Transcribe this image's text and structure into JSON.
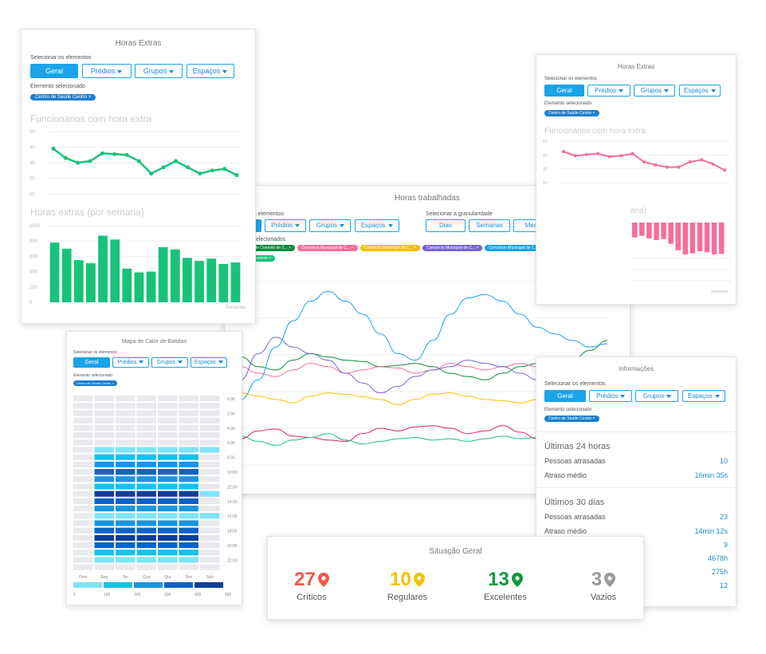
{
  "colors": {
    "accent": "#1aa3e8",
    "green": "#19c27a",
    "pink": "#f36f9a",
    "red": "#ef5a4a",
    "yellow": "#f5c000",
    "darkgreen": "#0b9a3c",
    "gray": "#9a9a9a"
  },
  "filters": {
    "select_label": "Selecionar os elementos",
    "geral": "Geral",
    "predios": "Prédios",
    "grupos": "Grupos",
    "espacos": "Espaços",
    "selected_label": "Elemento selecionado",
    "chip": "Centro de Saúde Centro"
  },
  "card_extras": {
    "title": "Horas Extras",
    "employees_title": "Funcionários com hora extra",
    "hours_title": "Horas extras (por semana)",
    "y1_ticks": [
      "50",
      "40",
      "30",
      "20",
      "10"
    ],
    "y2_ticks": [
      "1000",
      "800",
      "600",
      "400",
      "200",
      "0"
    ],
    "x_label": "Semanas"
  },
  "chart_data": [
    {
      "type": "line",
      "chart": "employees-overtime",
      "ylim": [
        10,
        50
      ],
      "values": [
        39,
        33,
        30,
        31,
        36,
        35.5,
        35,
        31,
        23,
        27,
        31,
        27,
        23,
        25,
        26,
        22
      ]
    },
    {
      "type": "bar",
      "chart": "overtime-hours",
      "ylim": [
        0,
        1000
      ],
      "values": [
        780,
        700,
        550,
        510,
        870,
        820,
        440,
        390,
        400,
        720,
        690,
        580,
        540,
        570,
        500,
        520
      ]
    },
    {
      "type": "line",
      "chart": "employees-overtime-pink",
      "ylim": [
        10,
        50
      ],
      "values": [
        40,
        36,
        37,
        38,
        35,
        36,
        38,
        30,
        27,
        25,
        25,
        30,
        32,
        28,
        22
      ]
    },
    {
      "type": "bar",
      "chart": "overtime-hours-pink",
      "values": [
        280,
        250,
        300,
        330,
        310,
        400,
        520,
        600,
        580,
        540,
        560,
        600,
        590
      ]
    },
    {
      "type": "line",
      "chart": "worked-hours",
      "series": [
        {
          "name": "Centro de Saúde Centro",
          "color": "#e0245e",
          "values": [
            40,
            52,
            55,
            44,
            42,
            38,
            36,
            48,
            56,
            52,
            58,
            60,
            56,
            48,
            52,
            60,
            50,
            40,
            38,
            35,
            36,
            40
          ]
        },
        {
          "name": "Secretaria de Turismo",
          "color": "#19c27a",
          "values": [
            44,
            36,
            30,
            38,
            42,
            48,
            38,
            32,
            36,
            40,
            42,
            38,
            40,
            36,
            40,
            44,
            40,
            42,
            46,
            48,
            46,
            50
          ]
        },
        {
          "name": "Centro de Controle de Z...",
          "color": "#0b8a3c",
          "values": [
            165,
            150,
            145,
            160,
            170,
            165,
            160,
            158,
            150,
            152,
            155,
            150,
            140,
            135,
            130,
            140,
            150,
            155,
            158,
            160,
            175,
            190
          ]
        },
        {
          "name": "Consórcio Municipal de C...",
          "color": "#f36f9a",
          "values": [
            150,
            140,
            135,
            145,
            155,
            150,
            140,
            145,
            150,
            148,
            140,
            145,
            155,
            150,
            145,
            150,
            155,
            150,
            140,
            145,
            150,
            148
          ]
        },
        {
          "name": "Consórcio Municipal de C...",
          "color": "#f5c000",
          "values": [
            110,
            105,
            100,
            95,
            105,
            110,
            108,
            104,
            100,
            92,
            100,
            108,
            110,
            105,
            100,
            98,
            95,
            100,
            102,
            104,
            100,
            105
          ]
        },
        {
          "name": "Consórcio Municipal de C...",
          "color": "#7b63d6",
          "values": [
            130,
            170,
            195,
            180,
            170,
            160,
            140,
            125,
            110,
            120,
            135,
            145,
            150,
            160,
            155,
            150,
            140,
            130,
            125,
            135,
            140,
            150
          ]
        },
        {
          "name": "Consórcio Municipal de C...",
          "color": "#1aa3e8",
          "values": [
            100,
            130,
            180,
            220,
            250,
            265,
            250,
            230,
            200,
            170,
            160,
            190,
            230,
            255,
            260,
            250,
            230,
            210,
            200,
            190,
            180,
            185
          ]
        }
      ]
    },
    {
      "type": "heatmap",
      "chart": "clock-in-heatmap",
      "columns": [
        "Dom",
        "Seg",
        "Ter",
        "Qua",
        "Qui",
        "Sex",
        "Sab"
      ],
      "row_labels": [
        "0:00",
        "2:00",
        "4:00",
        "6:00",
        "8:00",
        "10:00",
        "12:00",
        "14:00",
        "16:00",
        "18:00",
        "20:00",
        "22:00"
      ],
      "legend_ticks": [
        "1",
        "100",
        "200",
        "300",
        "400",
        "500"
      ]
    }
  ],
  "card_heatmap": {
    "title": "Mapa de Calor de Batidas"
  },
  "card_worked": {
    "title": "Horas trabalhadas",
    "select_label": "ros elementos",
    "gran_label": "Selecionar a granularidade",
    "geral_partial": "al",
    "dias": "Dias",
    "semanas": "Semanas",
    "meses": "Meses",
    "selected_label": "s selecionados",
    "chips": [
      {
        "text": "",
        "color": "#1aa3e8"
      },
      {
        "text": "Centro de Controle de Z...",
        "color": "#0b8a3c"
      },
      {
        "text": "Consórcio Municipal de C...",
        "color": "#f36f9a"
      },
      {
        "text": "Consórcio Municipal de C...",
        "color": "#f5c000"
      },
      {
        "text": "Consórcio Municipal de C...",
        "color": "#7b63d6"
      },
      {
        "text": "Consórcio Municipal de C...",
        "color": "#1aa3e8"
      },
      {
        "text": "Centro de Saúde Centro",
        "color": "#e0245e"
      },
      {
        "text": "Secretaria de Turismo",
        "color": "#19c27a"
      }
    ]
  },
  "card_pink": {
    "title": "Horas Extras",
    "employees_title": "Funcionários com hora extra",
    "partial_title": "ana)",
    "y_ticks": [
      "50",
      "40",
      "30",
      "20"
    ],
    "x_label": "Semanas"
  },
  "card_info": {
    "title": "Informações",
    "last24": "Últimas 24 horas",
    "late_people": "Pessoas atrasadas",
    "late_people_val": "10",
    "avg_delay": "Atraso médio",
    "avg_delay_val": "16min 35s",
    "last30": "Últimos 30 dias",
    "late_people30_val": "23",
    "avg_delay30_val": "14min 12s",
    "extra_vals": [
      "9",
      "4678h",
      "275h",
      "12"
    ]
  },
  "card_situacao": {
    "title": "Situação Geral",
    "items": [
      {
        "num": "27",
        "label": "Críticos",
        "color": "#ef5a4a"
      },
      {
        "num": "10",
        "label": "Regulares",
        "color": "#f5c000"
      },
      {
        "num": "13",
        "label": "Excelentes",
        "color": "#0b9a3c"
      },
      {
        "num": "3",
        "label": "Vazios",
        "color": "#9a9a9a"
      }
    ]
  }
}
